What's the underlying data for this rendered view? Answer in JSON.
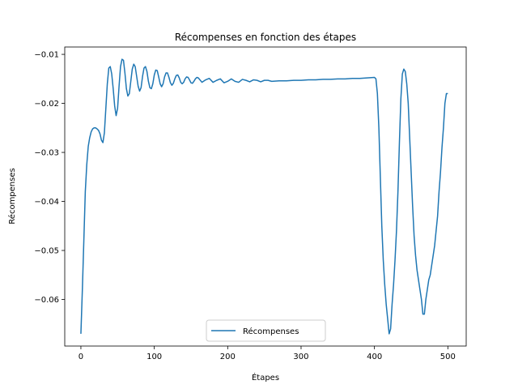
{
  "chart_data": {
    "type": "line",
    "title": "Récompenses en fonction des étapes",
    "xlabel": "Étapes",
    "ylabel": "Récompenses",
    "xlim": [
      -22,
      525
    ],
    "ylim": [
      -0.0695,
      -0.0085
    ],
    "xticks": [
      0,
      100,
      200,
      300,
      400,
      500
    ],
    "yticks": [
      -0.01,
      -0.02,
      -0.03,
      -0.04,
      -0.05,
      -0.06
    ],
    "ytick_labels": [
      "−0.01",
      "−0.02",
      "−0.03",
      "−0.04",
      "−0.05",
      "−0.06"
    ],
    "grid": false,
    "legend_position": "lower center",
    "series": [
      {
        "name": "Récompenses",
        "color": "#1f77b4",
        "x": [
          0,
          2,
          4,
          6,
          8,
          10,
          12,
          14,
          16,
          18,
          20,
          22,
          24,
          26,
          28,
          30,
          32,
          34,
          36,
          38,
          40,
          42,
          44,
          46,
          48,
          50,
          52,
          54,
          56,
          58,
          60,
          62,
          64,
          66,
          68,
          70,
          72,
          74,
          76,
          78,
          80,
          82,
          84,
          86,
          88,
          90,
          92,
          94,
          96,
          98,
          100,
          102,
          104,
          106,
          108,
          110,
          112,
          114,
          116,
          118,
          120,
          122,
          124,
          126,
          128,
          130,
          132,
          134,
          136,
          138,
          140,
          142,
          144,
          146,
          148,
          150,
          152,
          154,
          156,
          158,
          160,
          165,
          170,
          175,
          180,
          185,
          190,
          195,
          200,
          205,
          210,
          215,
          220,
          225,
          230,
          235,
          240,
          245,
          250,
          255,
          260,
          270,
          280,
          290,
          300,
          310,
          320,
          330,
          340,
          350,
          360,
          370,
          380,
          390,
          400,
          402,
          404,
          406,
          408,
          410,
          412,
          414,
          416,
          418,
          420,
          422,
          424,
          426,
          428,
          430,
          432,
          434,
          436,
          438,
          440,
          442,
          444,
          446,
          448,
          450,
          452,
          454,
          456,
          458,
          460,
          462,
          464,
          466,
          468,
          470,
          472,
          474,
          476,
          478,
          480,
          482,
          484,
          486,
          488,
          490,
          492,
          494,
          496,
          498,
          500
        ],
        "y": [
          -0.067,
          -0.058,
          -0.048,
          -0.038,
          -0.0325,
          -0.0288,
          -0.027,
          -0.0258,
          -0.0252,
          -0.025,
          -0.025,
          -0.0252,
          -0.0255,
          -0.0262,
          -0.0275,
          -0.028,
          -0.026,
          -0.021,
          -0.016,
          -0.0128,
          -0.0125,
          -0.014,
          -0.017,
          -0.0205,
          -0.0225,
          -0.021,
          -0.0165,
          -0.0125,
          -0.011,
          -0.0112,
          -0.0138,
          -0.017,
          -0.0185,
          -0.018,
          -0.0155,
          -0.013,
          -0.012,
          -0.0125,
          -0.0145,
          -0.0165,
          -0.0175,
          -0.0168,
          -0.0145,
          -0.0128,
          -0.0125,
          -0.0135,
          -0.0155,
          -0.0168,
          -0.017,
          -0.016,
          -0.0142,
          -0.0132,
          -0.0133,
          -0.0146,
          -0.016,
          -0.0166,
          -0.016,
          -0.0146,
          -0.0138,
          -0.0138,
          -0.0147,
          -0.0158,
          -0.0163,
          -0.0159,
          -0.015,
          -0.0143,
          -0.0142,
          -0.0148,
          -0.0157,
          -0.016,
          -0.0157,
          -0.015,
          -0.0146,
          -0.0147,
          -0.0152,
          -0.0158,
          -0.0159,
          -0.0155,
          -0.015,
          -0.0147,
          -0.0148,
          -0.0157,
          -0.0152,
          -0.0149,
          -0.0157,
          -0.0153,
          -0.015,
          -0.0158,
          -0.0155,
          -0.015,
          -0.0155,
          -0.0157,
          -0.0151,
          -0.0153,
          -0.0156,
          -0.0152,
          -0.0153,
          -0.0156,
          -0.0153,
          -0.0153,
          -0.0155,
          -0.0154,
          -0.0154,
          -0.0153,
          -0.0153,
          -0.0152,
          -0.0152,
          -0.0151,
          -0.0151,
          -0.015,
          -0.015,
          -0.0149,
          -0.0149,
          -0.0148,
          -0.0147,
          -0.015,
          -0.018,
          -0.025,
          -0.035,
          -0.045,
          -0.052,
          -0.057,
          -0.061,
          -0.064,
          -0.067,
          -0.066,
          -0.061,
          -0.057,
          -0.052,
          -0.046,
          -0.038,
          -0.028,
          -0.019,
          -0.014,
          -0.013,
          -0.0135,
          -0.016,
          -0.02,
          -0.027,
          -0.034,
          -0.041,
          -0.047,
          -0.051,
          -0.054,
          -0.056,
          -0.058,
          -0.06,
          -0.063,
          -0.063,
          -0.06,
          -0.058,
          -0.056,
          -0.055,
          -0.053,
          -0.051,
          -0.049,
          -0.046,
          -0.043,
          -0.038,
          -0.034,
          -0.029,
          -0.025,
          -0.02,
          -0.018,
          -0.018
        ]
      }
    ]
  }
}
